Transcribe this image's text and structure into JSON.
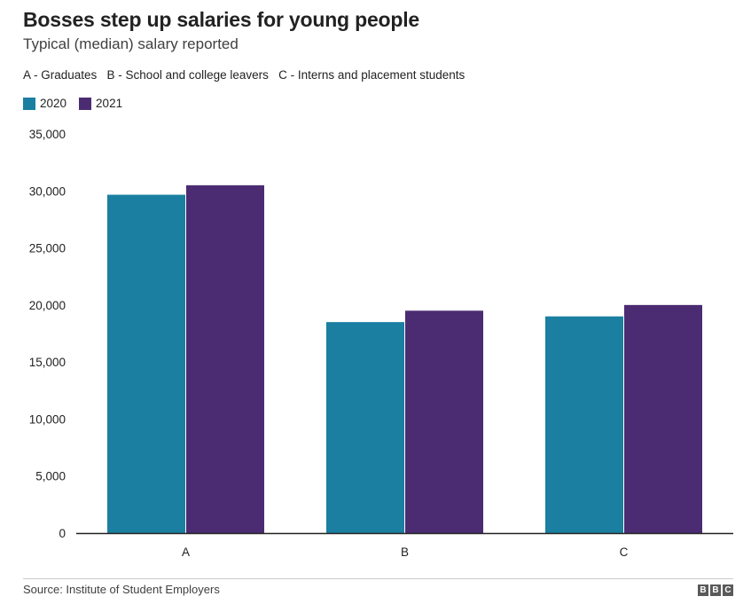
{
  "header": {
    "title": "Bosses step up salaries for young people",
    "subtitle": "Typical (median) salary reported",
    "note": "A - Graduates   B - School and college leavers   C - Interns and placement students"
  },
  "legend": [
    {
      "label": "2020",
      "color": "#1a7fa0"
    },
    {
      "label": "2021",
      "color": "#4b2c72"
    }
  ],
  "footer": {
    "source": "Source: Institute of Student Employers",
    "logo_letters": [
      "B",
      "B",
      "C"
    ]
  },
  "chart_data": {
    "type": "bar",
    "categories": [
      "A",
      "B",
      "C"
    ],
    "series": [
      {
        "name": "2020",
        "color": "#1a7fa0",
        "values": [
          29667,
          18500,
          19000
        ]
      },
      {
        "name": "2021",
        "color": "#4b2c72",
        "values": [
          30500,
          19500,
          20000
        ]
      }
    ],
    "ylim": [
      0,
      35000
    ],
    "yticks": [
      0,
      5000,
      10000,
      15000,
      20000,
      25000,
      30000,
      35000
    ],
    "ytick_labels": [
      "0",
      "5,000",
      "10,000",
      "15,000",
      "20,000",
      "25,000",
      "30,000",
      "35,000"
    ],
    "grid": false,
    "legend_position": "top-left"
  }
}
